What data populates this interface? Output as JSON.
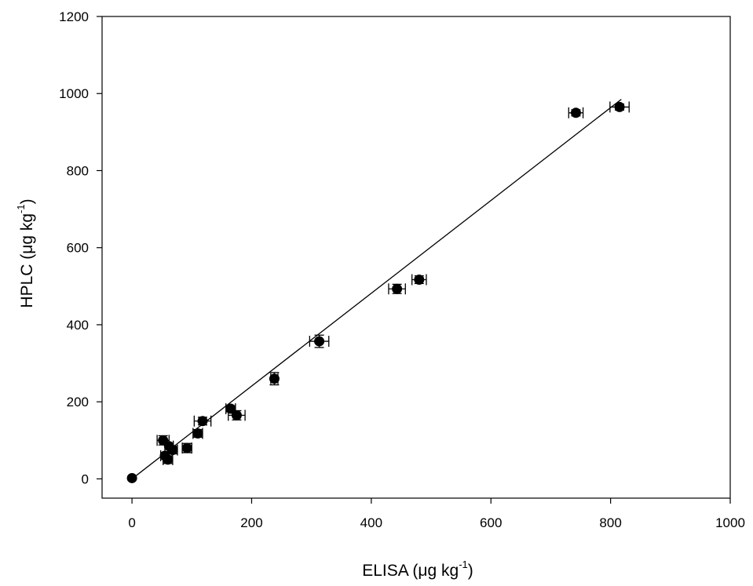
{
  "chart_data": {
    "type": "scatter",
    "title": "",
    "xlabel": {
      "main": "ELISA (μg kg",
      "sup": "-1",
      "end": ")"
    },
    "ylabel": {
      "main": "HPLC (μg kg",
      "sup": "-1",
      "end": ")"
    },
    "xlim": [
      -50,
      1000
    ],
    "ylim": [
      -50,
      1200
    ],
    "xticks": [
      0,
      200,
      400,
      600,
      800,
      1000
    ],
    "yticks": [
      0,
      200,
      400,
      600,
      800,
      1000,
      1200
    ],
    "xtick_labels": [
      "0",
      "200",
      "400",
      "600",
      "800",
      "1000"
    ],
    "ytick_labels": [
      "0",
      "200",
      "400",
      "600",
      "800",
      "1000",
      "1200"
    ],
    "grid": false,
    "points": [
      {
        "x": 0,
        "y": 2,
        "xerr": 0,
        "yerr": 0
      },
      {
        "x": 52,
        "y": 100,
        "xerr": 10,
        "yerr": 12
      },
      {
        "x": 55,
        "y": 60,
        "xerr": 7,
        "yerr": 8
      },
      {
        "x": 60,
        "y": 50,
        "xerr": 8,
        "yerr": 10
      },
      {
        "x": 62,
        "y": 85,
        "xerr": 7,
        "yerr": 8
      },
      {
        "x": 68,
        "y": 75,
        "xerr": 8,
        "yerr": 10
      },
      {
        "x": 92,
        "y": 80,
        "xerr": 8,
        "yerr": 12
      },
      {
        "x": 110,
        "y": 118,
        "xerr": 8,
        "yerr": 10
      },
      {
        "x": 118,
        "y": 150,
        "xerr": 14,
        "yerr": 10
      },
      {
        "x": 165,
        "y": 182,
        "xerr": 8,
        "yerr": 8
      },
      {
        "x": 175,
        "y": 165,
        "xerr": 14,
        "yerr": 12
      },
      {
        "x": 238,
        "y": 260,
        "xerr": 6,
        "yerr": 16
      },
      {
        "x": 313,
        "y": 357,
        "xerr": 16,
        "yerr": 16
      },
      {
        "x": 443,
        "y": 493,
        "xerr": 14,
        "yerr": 12
      },
      {
        "x": 480,
        "y": 517,
        "xerr": 12,
        "yerr": 10
      },
      {
        "x": 742,
        "y": 950,
        "xerr": 12,
        "yerr": 8
      },
      {
        "x": 815,
        "y": 965,
        "xerr": 16,
        "yerr": 8
      }
    ],
    "fit_line": {
      "x": [
        0,
        818
      ],
      "y": [
        0,
        985
      ]
    }
  }
}
